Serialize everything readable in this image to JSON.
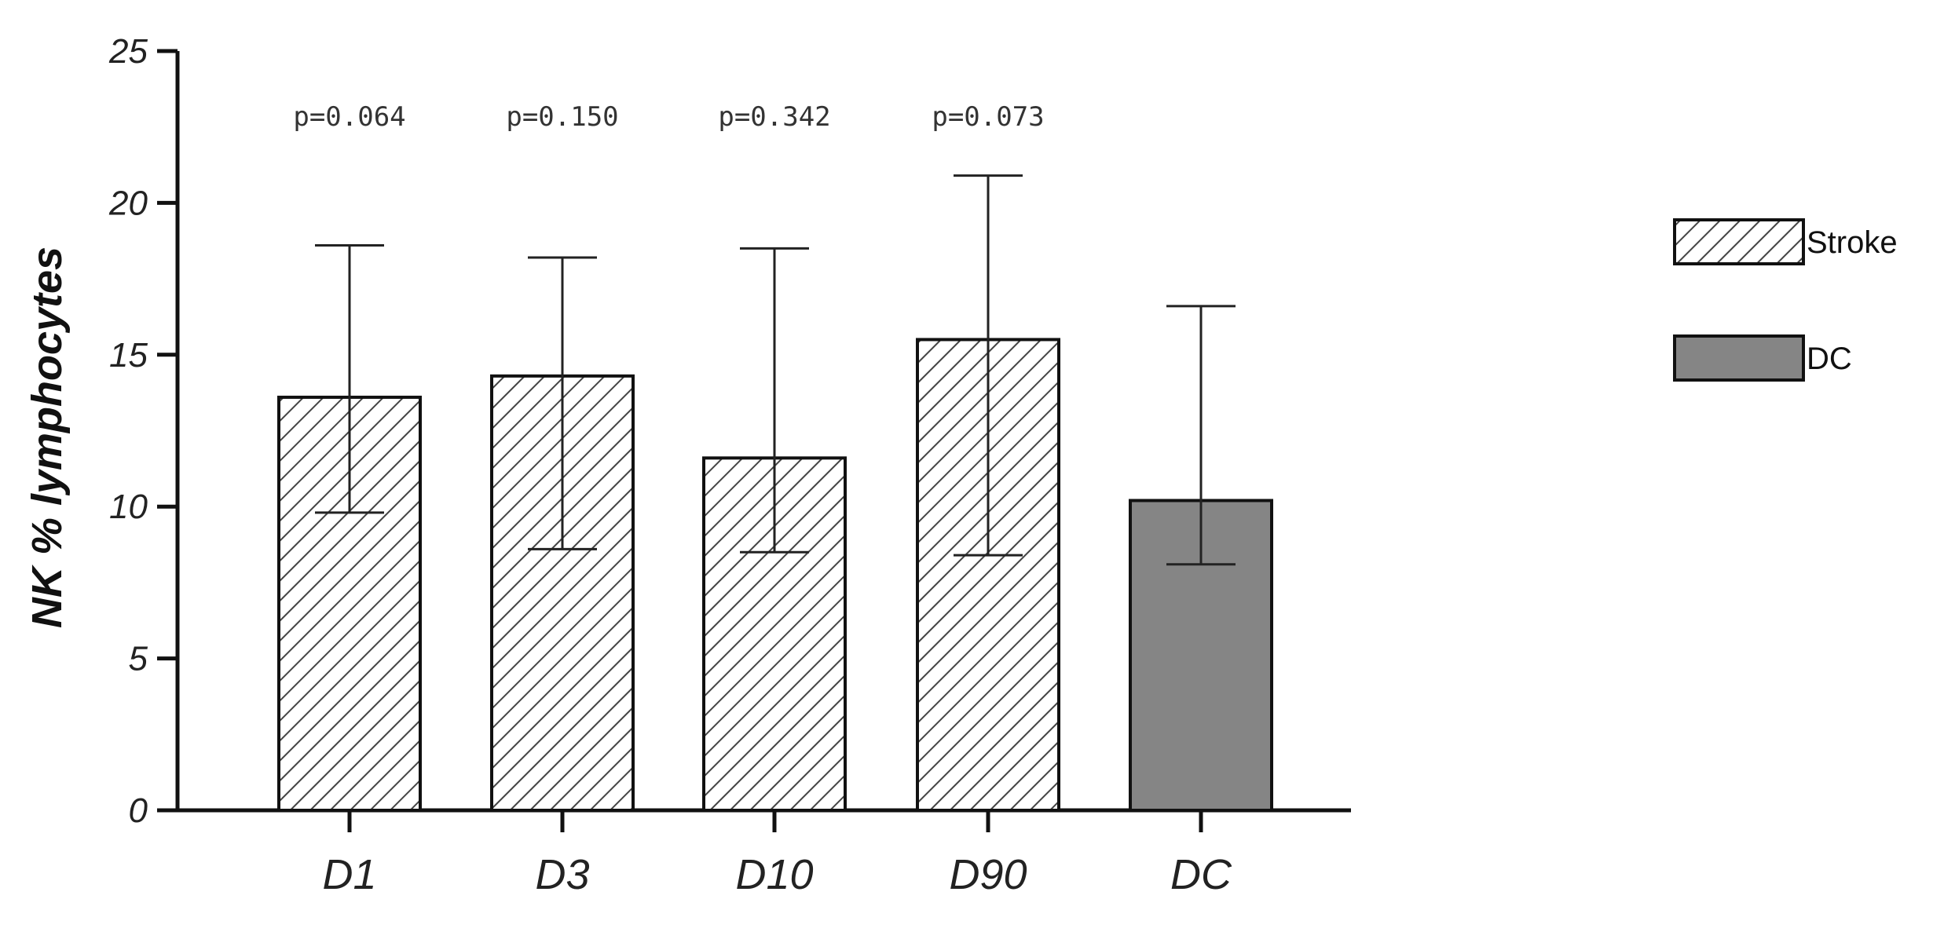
{
  "chart_data": {
    "type": "bar",
    "categories": [
      "D1",
      "D3",
      "D10",
      "D90",
      "DC"
    ],
    "values": [
      13.6,
      14.3,
      11.6,
      15.5,
      10.2
    ],
    "error_upper": [
      18.6,
      18.2,
      18.5,
      20.9,
      16.6
    ],
    "error_lower": [
      9.8,
      8.6,
      8.5,
      8.4,
      8.1
    ],
    "groups": [
      "Stroke",
      "Stroke",
      "Stroke",
      "Stroke",
      "DC"
    ],
    "annotations": [
      "p=0.064",
      "p=0.150",
      "p=0.342",
      "p=0.073",
      ""
    ],
    "title": "",
    "xlabel": "",
    "ylabel": "NK % lymphocytes",
    "ylim": [
      0,
      25
    ],
    "yticks": [
      0,
      5,
      10,
      15,
      20,
      25
    ],
    "grid": false,
    "legend": {
      "placement": "right",
      "entries": [
        {
          "label": "Stroke",
          "fill": "hatched"
        },
        {
          "label": "DC",
          "fill": "solid"
        }
      ]
    },
    "colors": {
      "stroke_bar": "#ffffff",
      "stroke_hatch": "#444444",
      "dc_bar": "#858585",
      "axis": "#111111"
    }
  }
}
